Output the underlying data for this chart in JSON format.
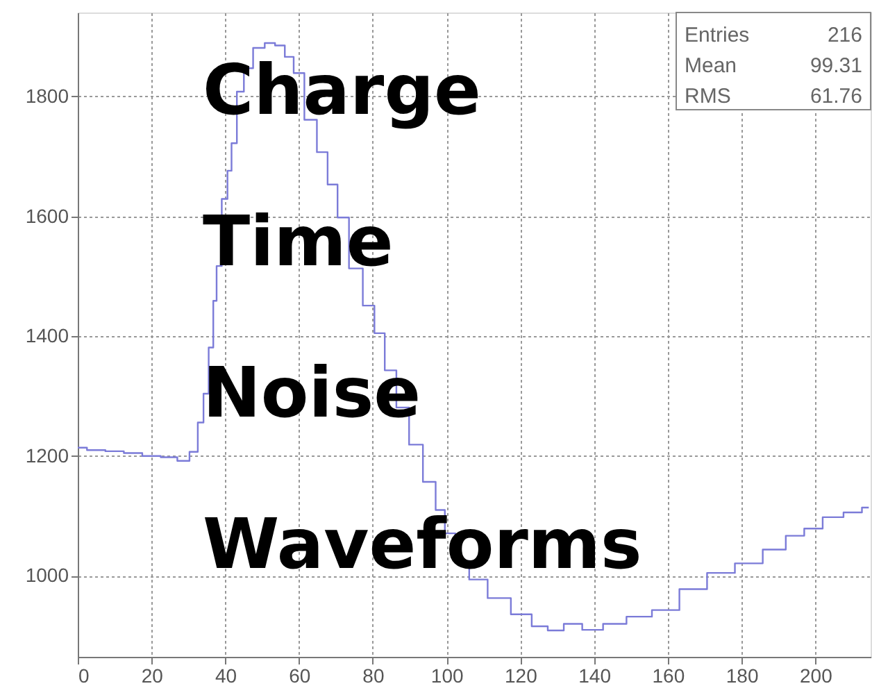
{
  "chart_data": {
    "type": "step",
    "x": [
      0,
      5,
      10,
      15,
      20,
      25,
      29,
      31.6,
      33.5,
      34.7,
      36.3,
      37.2,
      38.1,
      40,
      41.2,
      42.2,
      44.1,
      46,
      49.1,
      52.3,
      54.7,
      57.6,
      59.5,
      63.4,
      66.3,
      69.2,
      71.7,
      75.4,
      79.2,
      81.7,
      84.8,
      88,
      91.7,
      95.5,
      98.6,
      100.5,
      104.3,
      108,
      114.3,
      120.6,
      125.6,
      129.3,
      134.3,
      139.3,
      145.6,
      152,
      159.4,
      166.9,
      174.4,
      182,
      189.5,
      194.5,
      199.5,
      204.5,
      210.8,
      214.5
    ],
    "series": [
      {
        "color": "#7b7bd8",
        "values": [
          1214,
          1210,
          1208,
          1205,
          1200,
          1198,
          1192,
          1207,
          1256,
          1304,
          1381,
          1459,
          1517,
          1629,
          1676,
          1722,
          1808,
          1847,
          1881,
          1889,
          1885,
          1866,
          1839,
          1761,
          1707,
          1653,
          1598,
          1513,
          1451,
          1405,
          1343,
          1281,
          1219,
          1157,
          1110,
          1071,
          1025,
          994,
          963,
          936,
          916,
          909,
          920,
          910,
          920,
          932,
          943,
          978,
          1005,
          1021,
          1044,
          1067,
          1079,
          1098,
          1106,
          1114
        ]
      }
    ],
    "xlim": [
      0,
      215
    ],
    "ylim": [
      865,
      1940
    ],
    "xticks": [
      0,
      20,
      40,
      60,
      80,
      100,
      120,
      140,
      160,
      180,
      200
    ],
    "yticks": [
      1000,
      1200,
      1400,
      1600,
      1800
    ],
    "grid": true,
    "marker": "none",
    "line_style": "solid",
    "annotations": [
      "Charge",
      "Time",
      "Noise",
      "Waveforms",
      "Entries",
      "216",
      "Mean",
      "99.31",
      "RMS",
      "61.76"
    ]
  }
}
